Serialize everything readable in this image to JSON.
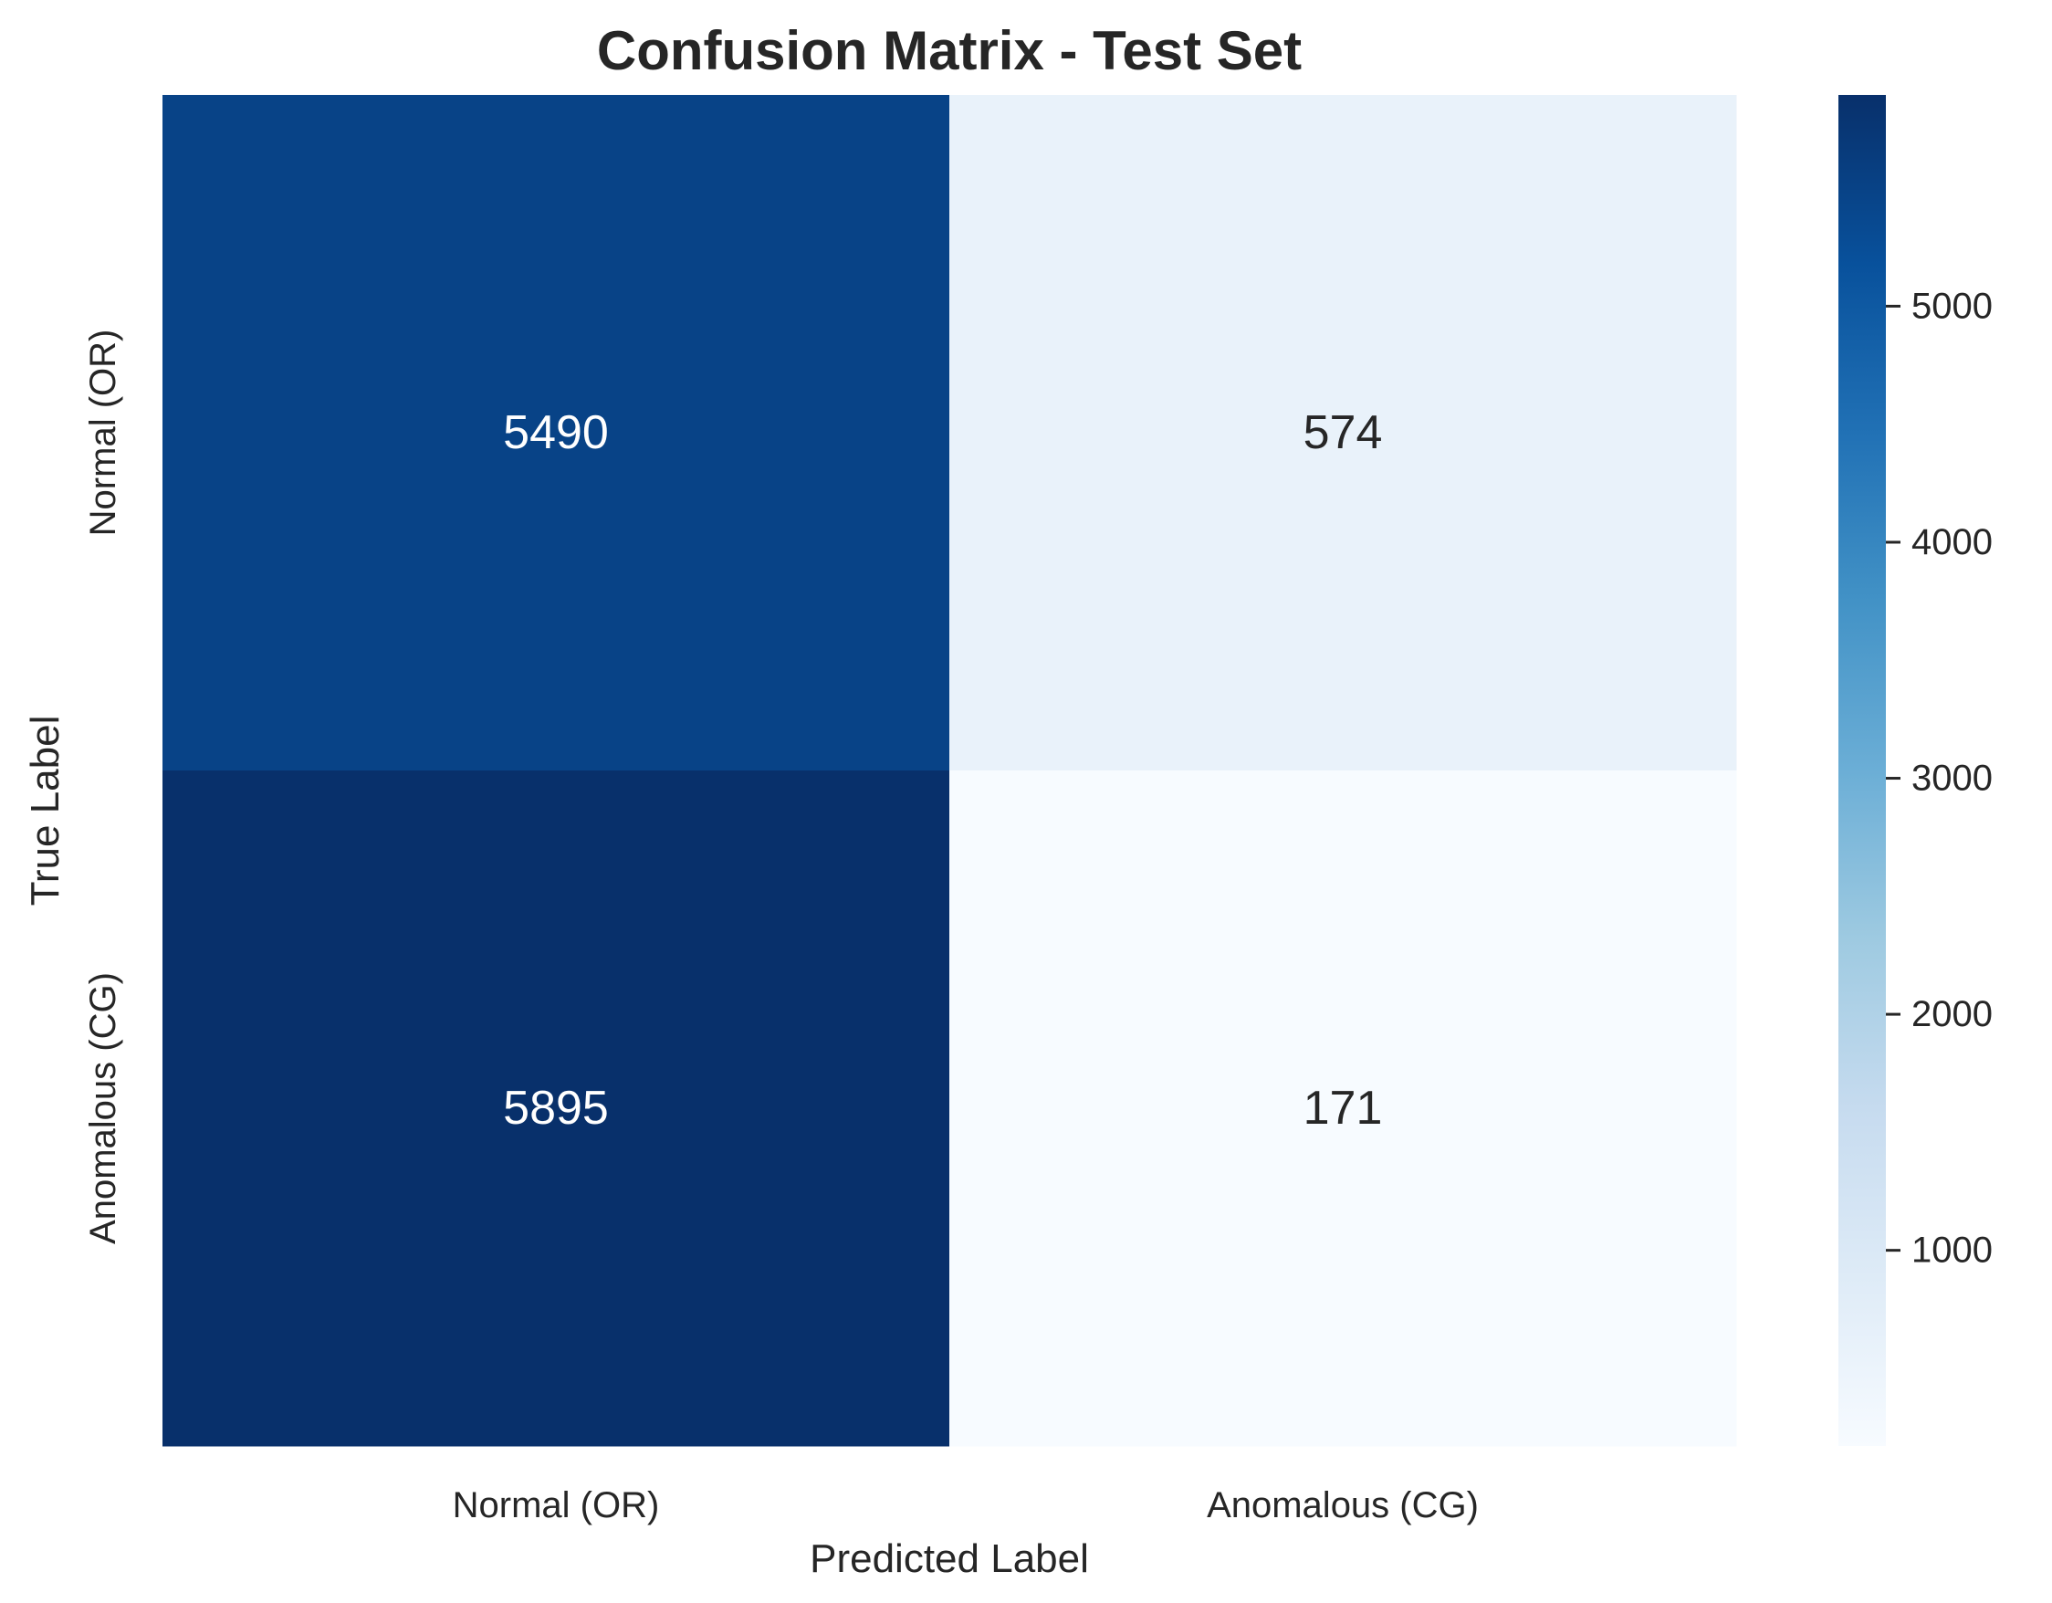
{
  "chart_data": {
    "type": "heatmap",
    "title": "Confusion Matrix - Test Set",
    "xlabel": "Predicted Label",
    "ylabel": "True Label",
    "x_categories": [
      "Normal (OR)",
      "Anomalous (CG)"
    ],
    "y_categories": [
      "Normal (OR)",
      "Anomalous (CG)"
    ],
    "values": [
      [
        5490,
        574
      ],
      [
        5895,
        171
      ]
    ],
    "colormap": "Blues",
    "colorbar": {
      "ticks": [
        1000,
        2000,
        3000,
        4000,
        5000
      ],
      "tick_labels": [
        "1000",
        "2000",
        "3000",
        "4000",
        "5000"
      ],
      "range": [
        171,
        5895
      ]
    },
    "colors": {
      "text_dark": "#262626",
      "text_light": "#ffffff"
    }
  }
}
